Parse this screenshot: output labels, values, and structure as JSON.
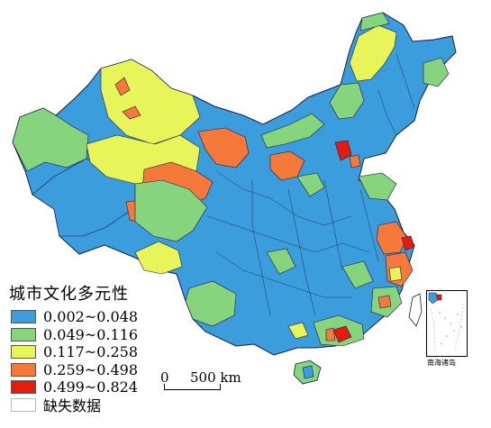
{
  "legend": {
    "title": "城市文化多元性",
    "items": [
      {
        "label": "0.002~0.048",
        "color": "#3c9ddc"
      },
      {
        "label": "0.049~0.116",
        "color": "#87d47f"
      },
      {
        "label": "0.117~0.258",
        "color": "#e8f55a"
      },
      {
        "label": "0.259~0.498",
        "color": "#f4793a"
      },
      {
        "label": "0.499~0.824",
        "color": "#e51b10"
      },
      {
        "label": "缺失数据",
        "color": "#ffffff"
      }
    ]
  },
  "scale": {
    "zero": "0",
    "distance": "500 km"
  },
  "inset": {
    "label": "南海诸岛"
  }
}
